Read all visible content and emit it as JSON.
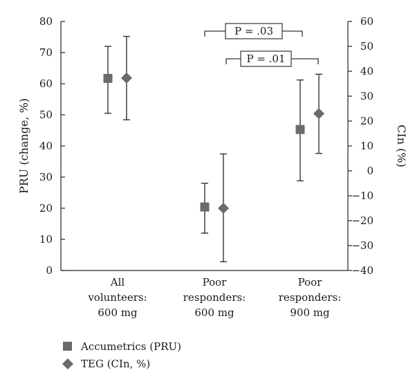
{
  "chart_data": {
    "type": "scatter",
    "categories": [
      [
        "All",
        "volunteers:",
        "600 mg"
      ],
      [
        "Poor",
        "responders:",
        "600 mg"
      ],
      [
        "Poor",
        "responders:",
        "900 mg"
      ]
    ],
    "y_left": {
      "label": "PRU (change, %)",
      "range": [
        0,
        80
      ],
      "ticks": [
        0,
        10,
        20,
        30,
        40,
        50,
        60,
        70,
        80
      ]
    },
    "y_right": {
      "label": "CIn (%)",
      "range": [
        -40,
        60
      ],
      "ticks": [
        -40,
        -30,
        -20,
        -10,
        0,
        10,
        20,
        30,
        40,
        50,
        60
      ]
    },
    "series": [
      {
        "name": "Accumetrics (PRU)",
        "axis": "left",
        "marker": "square",
        "color": "#6b6b6b",
        "points": [
          {
            "mean": 61.7,
            "low": 50.5,
            "high": 72.0
          },
          {
            "mean": 20.4,
            "low": 12.0,
            "high": 28.0
          },
          {
            "mean": 45.3,
            "low": 28.8,
            "high": 61.2
          }
        ]
      },
      {
        "name": "TEG (CIn, %)",
        "axis": "right",
        "marker": "diamond",
        "color": "#6b6b6b",
        "points": [
          {
            "mean": 37.3,
            "low": 20.5,
            "high": 54.0
          },
          {
            "mean": -15.0,
            "low": -36.5,
            "high": 6.8
          },
          {
            "mean": 23.0,
            "low": 7.0,
            "high": 38.8
          }
        ]
      }
    ],
    "annotations": [
      {
        "text": "P = .03",
        "from": 1,
        "to": 2,
        "level": 1
      },
      {
        "text": "P = .01",
        "from": 1,
        "to": 2,
        "level": 2
      }
    ],
    "legend": {
      "placement": "bottom-left"
    }
  }
}
